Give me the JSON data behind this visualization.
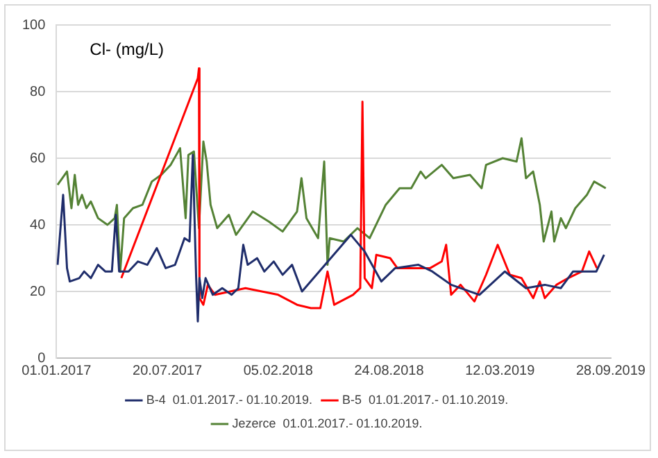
{
  "chart_data": {
    "type": "line",
    "ylabel": "Cl- (mg/L)",
    "xlim": [
      "2017-01-01",
      "2019-09-28"
    ],
    "xticks": [
      {
        "value": "2017-01-01",
        "label": "01.01.2017"
      },
      {
        "value": "2017-07-20",
        "label": "20.07.2017"
      },
      {
        "value": "2018-02-05",
        "label": "05.02.2018"
      },
      {
        "value": "2018-08-24",
        "label": "24.08.2018"
      },
      {
        "value": "2019-03-12",
        "label": "12.03.2019"
      },
      {
        "value": "2019-09-28",
        "label": "28.09.2019"
      }
    ],
    "ylim": [
      0,
      100
    ],
    "yticks": [
      0,
      20,
      40,
      60,
      80,
      100
    ],
    "grid": "y",
    "legend": "bottom",
    "marker": "none",
    "line_style": "solid",
    "series": [
      {
        "name": "B-4  01.01.2017.- 01.10.2019.",
        "color": "#1f2d6b",
        "x": [
          "2017-01-03",
          "2017-01-13",
          "2017-01-20",
          "2017-01-25",
          "2017-02-11",
          "2017-02-20",
          "2017-03-04",
          "2017-03-17",
          "2017-03-30",
          "2017-04-11",
          "2017-04-18",
          "2017-04-24",
          "2017-05-11",
          "2017-05-28",
          "2017-06-14",
          "2017-07-01",
          "2017-07-17",
          "2017-08-03",
          "2017-08-20",
          "2017-08-29",
          "2017-09-04",
          "2017-09-10",
          "2017-09-13",
          "2017-09-16",
          "2017-09-21",
          "2017-09-27",
          "2017-10-10",
          "2017-10-27",
          "2017-11-13",
          "2017-11-25",
          "2017-12-04",
          "2017-12-12",
          "2017-12-29",
          "2018-01-11",
          "2018-01-28",
          "2018-02-13",
          "2018-03-02",
          "2018-03-20",
          "2018-06-16",
          "2018-07-11",
          "2018-08-10",
          "2018-09-04",
          "2018-10-16",
          "2018-11-10",
          "2018-12-14",
          "2019-02-03",
          "2019-03-21",
          "2019-04-28",
          "2019-06-01",
          "2019-06-30",
          "2019-07-22",
          "2019-08-16",
          "2019-09-02",
          "2019-09-16"
        ],
        "values": [
          28,
          49,
          27,
          23,
          24,
          26,
          24,
          28,
          26,
          26,
          43,
          26,
          26,
          29,
          28,
          33,
          27,
          28,
          36,
          35,
          61,
          24,
          11,
          24,
          18,
          24,
          19,
          21,
          19,
          21,
          34,
          28,
          30,
          26,
          29,
          25,
          28,
          20,
          37,
          32,
          23,
          27,
          28,
          26,
          22,
          19,
          26,
          21,
          22,
          21,
          26,
          26,
          26,
          31
        ]
      },
      {
        "name": "B-5  01.01.2017.- 01.10.2019.",
        "color": "#ff0000",
        "x": [
          "2017-04-28",
          "2017-09-13",
          "2017-09-15",
          "2017-09-16",
          "2017-09-23",
          "2017-10-01",
          "2017-10-14",
          "2017-12-08",
          "2018-02-05",
          "2018-03-11",
          "2018-04-05",
          "2018-04-22",
          "2018-05-05",
          "2018-05-17",
          "2018-06-20",
          "2018-07-03",
          "2018-07-07",
          "2018-07-11",
          "2018-07-24",
          "2018-08-01",
          "2018-08-26",
          "2018-09-08",
          "2018-10-20",
          "2018-11-06",
          "2018-11-27",
          "2018-12-05",
          "2018-12-14",
          "2018-12-31",
          "2019-01-25",
          "2019-02-15",
          "2019-03-08",
          "2019-03-30",
          "2019-04-20",
          "2019-05-11",
          "2019-05-23",
          "2019-06-01",
          "2019-06-22",
          "2019-07-13",
          "2019-08-07",
          "2019-08-20",
          "2019-09-03"
        ],
        "values": [
          24,
          84,
          87,
          18,
          16,
          22,
          19,
          21,
          19,
          16,
          15,
          15,
          26,
          16,
          19,
          21,
          77,
          24,
          21,
          31,
          30,
          27,
          27,
          27,
          29,
          34,
          19,
          22,
          17,
          25,
          34,
          25,
          24,
          18,
          23,
          18,
          22,
          24,
          26,
          32,
          27
        ]
      },
      {
        "name": "Jezerce  01.01.2017.- 01.10.2019.",
        "color": "#548235",
        "x": [
          "2017-01-03",
          "2017-01-20",
          "2017-01-28",
          "2017-02-03",
          "2017-02-09",
          "2017-02-16",
          "2017-02-24",
          "2017-03-04",
          "2017-03-17",
          "2017-04-03",
          "2017-04-16",
          "2017-04-20",
          "2017-04-26",
          "2017-05-03",
          "2017-05-19",
          "2017-06-05",
          "2017-06-22",
          "2017-07-09",
          "2017-07-26",
          "2017-08-12",
          "2017-08-22",
          "2017-08-27",
          "2017-09-06",
          "2017-09-15",
          "2017-09-23",
          "2017-09-29",
          "2017-10-06",
          "2017-10-18",
          "2017-11-08",
          "2017-11-21",
          "2017-12-21",
          "2018-01-19",
          "2018-02-13",
          "2018-03-11",
          "2018-03-19",
          "2018-03-28",
          "2018-04-18",
          "2018-04-29",
          "2018-05-05",
          "2018-05-09",
          "2018-06-03",
          "2018-06-28",
          "2018-07-20",
          "2018-08-18",
          "2018-09-12",
          "2018-10-03",
          "2018-10-20",
          "2018-10-29",
          "2018-11-27",
          "2018-12-18",
          "2019-01-17",
          "2019-02-07",
          "2019-02-15",
          "2019-03-17",
          "2019-04-11",
          "2019-04-20",
          "2019-04-28",
          "2019-05-11",
          "2019-05-23",
          "2019-05-30",
          "2019-06-13",
          "2019-06-18",
          "2019-06-30",
          "2019-07-09",
          "2019-07-26",
          "2019-08-16",
          "2019-08-29",
          "2019-09-19"
        ],
        "values": [
          52,
          56,
          45,
          55,
          46,
          49,
          45,
          47,
          42,
          40,
          42,
          46,
          26,
          42,
          45,
          46,
          53,
          55,
          58,
          63,
          42,
          61,
          62,
          39,
          65,
          59,
          46,
          39,
          43,
          37,
          44,
          41,
          38,
          44,
          54,
          42,
          36,
          59,
          28,
          36,
          35,
          39,
          36,
          46,
          51,
          51,
          56,
          54,
          58,
          54,
          55,
          51,
          58,
          60,
          59,
          66,
          54,
          56,
          46,
          35,
          44,
          35,
          42,
          39,
          45,
          49,
          53,
          51
        ]
      }
    ]
  }
}
